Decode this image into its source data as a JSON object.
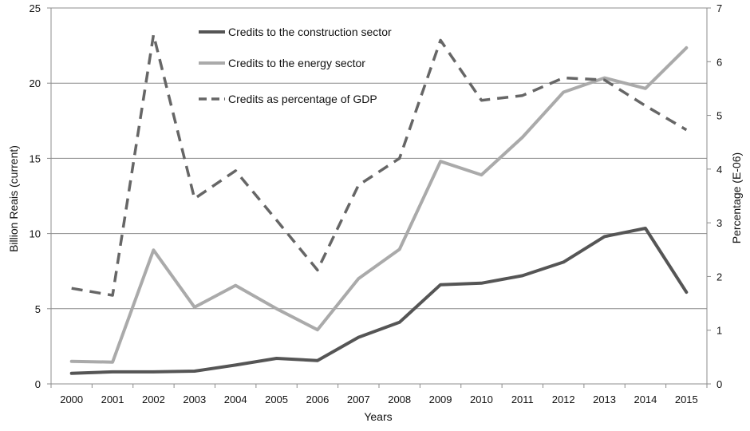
{
  "chart_data": {
    "type": "line",
    "title": "",
    "xlabel": "Years",
    "ylabel_left": "Billion Reais (current)",
    "ylabel_right": "Percentage (E-06)",
    "x": [
      "2000",
      "2001",
      "2002",
      "2003",
      "2004",
      "2005",
      "2006",
      "2007",
      "2008",
      "2009",
      "2010",
      "2011",
      "2012",
      "2013",
      "2014",
      "2015"
    ],
    "y_left": {
      "min": 0,
      "max": 25,
      "ticks": [
        0,
        5,
        10,
        15,
        20,
        25
      ]
    },
    "y_right": {
      "min": 0,
      "max": 7,
      "ticks": [
        0,
        1,
        2,
        3,
        4,
        5,
        6,
        7
      ]
    },
    "grid": "horizontal",
    "legend_position": "top-left",
    "series": [
      {
        "name": "Credits to the construction sector",
        "axis": "left",
        "color": "#555555",
        "style": "solid",
        "values": [
          0.7,
          0.8,
          0.8,
          0.85,
          1.25,
          1.7,
          1.55,
          3.1,
          4.1,
          6.6,
          6.7,
          7.2,
          8.1,
          9.8,
          10.35,
          6.1
        ]
      },
      {
        "name": "Credits to the energy sector",
        "axis": "left",
        "color": "#aaaaaa",
        "style": "solid",
        "values": [
          1.5,
          1.45,
          8.9,
          5.1,
          6.55,
          5.0,
          3.6,
          7.0,
          8.95,
          14.8,
          13.9,
          16.4,
          19.4,
          20.35,
          19.65,
          22.35
        ]
      },
      {
        "name": "Credits as percentage of GDP",
        "axis": "right",
        "color": "#666666",
        "style": "dashed",
        "values": [
          1.78,
          1.65,
          6.5,
          3.45,
          3.97,
          3.05,
          2.12,
          3.7,
          4.2,
          6.4,
          5.28,
          5.37,
          5.7,
          5.66,
          5.18,
          4.73
        ]
      }
    ]
  }
}
